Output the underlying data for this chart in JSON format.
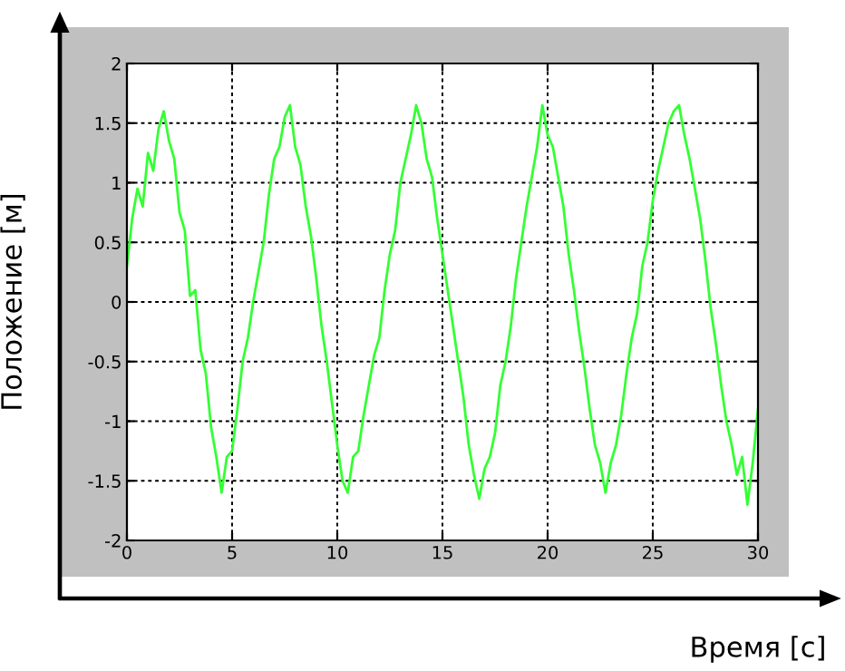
{
  "chart_data": {
    "type": "line",
    "xlabel": "Время [с]",
    "ylabel": "Положение [м]",
    "xlim": [
      0,
      30
    ],
    "ylim": [
      -2,
      2
    ],
    "xticks": [
      0,
      5,
      10,
      15,
      20,
      25,
      30
    ],
    "yticks": [
      -2,
      -1.5,
      -1,
      -0.5,
      0,
      0.5,
      1,
      1.5,
      2
    ],
    "grid": true,
    "line_style": "solid",
    "marker": "none",
    "x": [
      0,
      0.25,
      0.5,
      0.75,
      1,
      1.25,
      1.5,
      1.75,
      2,
      2.25,
      2.5,
      2.75,
      3,
      3.25,
      3.5,
      3.75,
      4,
      4.25,
      4.5,
      4.75,
      5,
      5.25,
      5.5,
      5.75,
      6,
      6.25,
      6.5,
      6.75,
      7,
      7.25,
      7.5,
      7.75,
      8,
      8.25,
      8.5,
      8.75,
      9,
      9.25,
      9.5,
      9.75,
      10,
      10.25,
      10.5,
      10.75,
      11,
      11.25,
      11.5,
      11.75,
      12,
      12.25,
      12.5,
      12.75,
      13,
      13.25,
      13.5,
      13.75,
      14,
      14.25,
      14.5,
      14.75,
      15,
      15.25,
      15.5,
      15.75,
      16,
      16.25,
      16.5,
      16.75,
      17,
      17.25,
      17.5,
      17.75,
      18,
      18.25,
      18.5,
      18.75,
      19,
      19.25,
      19.5,
      19.75,
      20,
      20.25,
      20.5,
      20.75,
      21,
      21.25,
      21.5,
      21.75,
      22,
      22.25,
      22.5,
      22.75,
      23,
      23.25,
      23.5,
      23.75,
      24,
      24.25,
      24.5,
      24.75,
      25,
      25.25,
      25.5,
      25.75,
      26,
      26.25,
      26.5,
      26.75,
      27,
      27.25,
      27.5,
      27.75,
      28,
      28.25,
      28.5,
      28.75,
      29,
      29.25,
      29.5,
      29.75,
      30
    ],
    "series": [
      {
        "color": "#33ff33",
        "values": [
          0.3,
          0.7,
          0.95,
          0.8,
          1.25,
          1.1,
          1.45,
          1.6,
          1.35,
          1.2,
          0.75,
          0.6,
          0.05,
          0.1,
          -0.4,
          -0.6,
          -1.05,
          -1.3,
          -1.6,
          -1.3,
          -1.25,
          -0.9,
          -0.5,
          -0.3,
          0.0,
          0.25,
          0.5,
          0.9,
          1.2,
          1.3,
          1.55,
          1.65,
          1.3,
          1.15,
          0.8,
          0.55,
          0.2,
          -0.2,
          -0.5,
          -0.85,
          -1.2,
          -1.5,
          -1.6,
          -1.3,
          -1.25,
          -0.95,
          -0.7,
          -0.45,
          -0.3,
          0.1,
          0.4,
          0.6,
          1.0,
          1.2,
          1.4,
          1.65,
          1.5,
          1.2,
          1.05,
          0.7,
          0.4,
          0.1,
          -0.2,
          -0.5,
          -0.8,
          -1.2,
          -1.45,
          -1.65,
          -1.4,
          -1.3,
          -1.1,
          -0.7,
          -0.5,
          -0.2,
          0.2,
          0.5,
          0.8,
          1.05,
          1.3,
          1.65,
          1.4,
          1.3,
          1.05,
          0.8,
          0.4,
          0.1,
          -0.25,
          -0.55,
          -0.9,
          -1.2,
          -1.35,
          -1.6,
          -1.35,
          -1.2,
          -0.95,
          -0.6,
          -0.3,
          -0.1,
          0.3,
          0.5,
          0.85,
          1.1,
          1.3,
          1.5,
          1.6,
          1.65,
          1.4,
          1.2,
          0.95,
          0.7,
          0.35,
          -0.05,
          -0.35,
          -0.7,
          -1.0,
          -1.2,
          -1.45,
          -1.3,
          -1.7,
          -1.35,
          -0.9
        ]
      }
    ]
  }
}
